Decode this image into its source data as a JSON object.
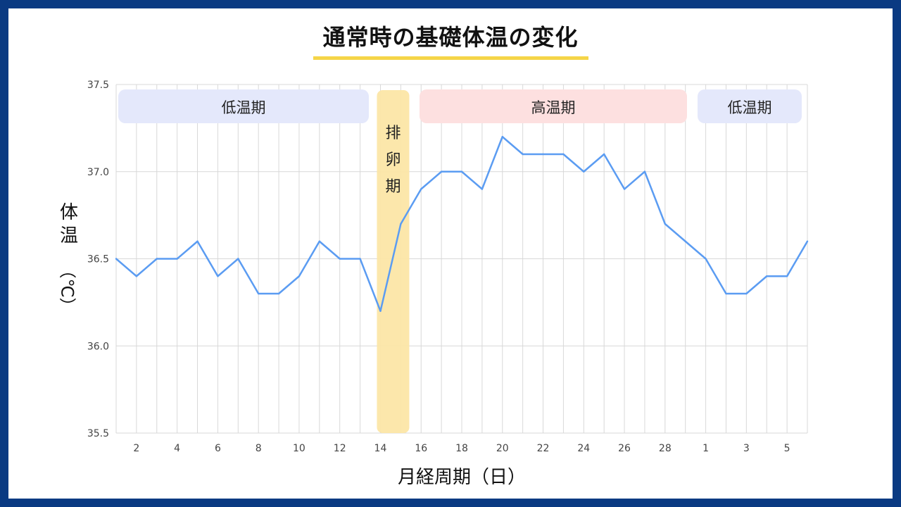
{
  "title": "通常時の基礎体温の変化",
  "colors": {
    "background": "#0a3a82",
    "title_underline": "#f5d548",
    "line": "#5b9cf2",
    "low_phase": "#e4e8fb",
    "ovulation_phase": "#fce6a6",
    "high_phase": "#fde0e0",
    "grid": "#d8d8d8"
  },
  "chart_data": {
    "type": "line",
    "title": "通常時の基礎体温の変化",
    "xlabel": "月経周期（日）",
    "ylabel": "体温",
    "ylabel_unit": "（℃）",
    "ylim": [
      35.5,
      37.5
    ],
    "y_ticks": [
      "35.5",
      "36.0",
      "36.5",
      "37.0",
      "37.5"
    ],
    "x_tick_labels": [
      "2",
      "4",
      "6",
      "8",
      "10",
      "12",
      "14",
      "16",
      "18",
      "20",
      "22",
      "24",
      "26",
      "28",
      "1",
      "3",
      "5"
    ],
    "grid": true,
    "series": [
      {
        "values": [
          36.5,
          36.4,
          36.5,
          36.5,
          36.6,
          36.4,
          36.5,
          36.3,
          36.3,
          36.4,
          36.6,
          36.5,
          36.5,
          36.2,
          36.7,
          36.9,
          37.0,
          37.0,
          36.9,
          37.2,
          37.1,
          37.1,
          37.1,
          37.0,
          37.1,
          36.9,
          37.0,
          36.7,
          36.6,
          36.5,
          36.3,
          36.3,
          36.4,
          36.4,
          36.6
        ]
      }
    ],
    "phases": [
      {
        "label": "低温期",
        "type": "low",
        "from_index": 0,
        "to_index": 12
      },
      {
        "label": "排卵期",
        "type": "ovulation",
        "from_index": 13,
        "to_index": 14
      },
      {
        "label": "高温期",
        "type": "high",
        "from_index": 15,
        "to_index": 27
      },
      {
        "label": "低温期",
        "type": "low",
        "from_index": 29,
        "to_index": 33
      }
    ]
  }
}
